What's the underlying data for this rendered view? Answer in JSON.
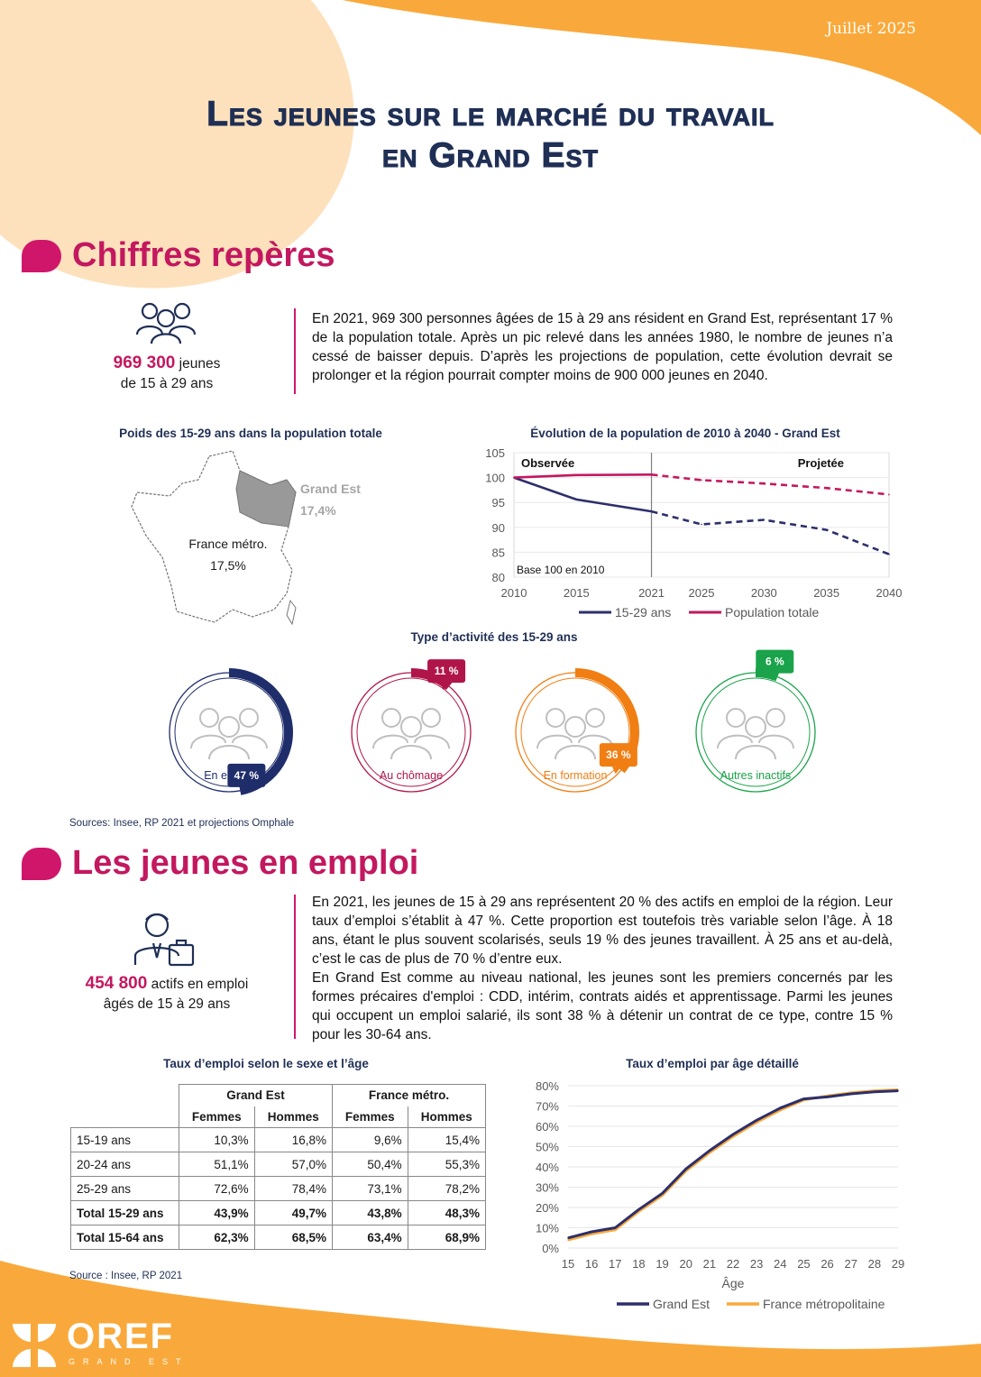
{
  "header": {
    "date": "Juillet 2025",
    "title_line1": "Les jeunes sur le marché du travail",
    "title_line2": "en Grand Est"
  },
  "colors": {
    "orange": "#f9a93b",
    "peach": "#fde1bc",
    "magenta": "#c3185f",
    "navy": "#1f2f55",
    "emploi": "#1f2d6b",
    "chomage": "#b01549",
    "formation": "#f07e13",
    "inactifs": "#1aa34a"
  },
  "section1": {
    "title": "Chiffres repères",
    "stat_value": "969 300",
    "stat_unit": "jeunes",
    "stat_line2": "de 15 à 29 ans",
    "text": "En 2021, 969 300 personnes âgées de 15 à 29 ans résident en Grand Est, représentant 17 % de la population totale. Après un pic relevé dans les années 1980, le nombre de jeunes n’a cessé de baisser depuis. D’après les projections de population, cette évolution devrait se prolonger et la région pourrait compter moins de 900 000 jeunes en 2040.",
    "map": {
      "title": "Poids des 15-29 ans dans la population totale",
      "region_label": "Grand Est",
      "region_value": "17,4%",
      "france_label": "France métro.",
      "france_value": "17,5%"
    },
    "sources": "Sources: Insee, RP 2021 et projections Omphale"
  },
  "activity": {
    "title": "Type d’activité des 15-29 ans",
    "items": [
      {
        "label": "En emploi",
        "badge": "47 %",
        "pct": 47,
        "color": "#1f2d6b",
        "icon": "group-icon"
      },
      {
        "label": "Au chômage",
        "badge": "11 %",
        "pct": 11,
        "color": "#b01549",
        "icon": "group-document-icon"
      },
      {
        "label": "En formation",
        "badge": "36 %",
        "pct": 36,
        "color": "#f07e13",
        "icon": "students-icon"
      },
      {
        "label": "Autres inactifs",
        "badge": "6 %",
        "pct": 6,
        "color": "#1aa34a",
        "icon": "pair-icon"
      }
    ]
  },
  "section2": {
    "title": "Les jeunes en emploi",
    "stat_value": "454 800",
    "stat_unit": "actifs en emploi",
    "stat_line2": "âgés de 15 à 29 ans",
    "para1": "En 2021, les jeunes de 15 à 29 ans représentent 20 % des actifs en emploi de la région. Leur taux d’emploi s’établit à 47 %. Cette proportion est toutefois très variable selon l’âge. À 18 ans, étant le plus souvent scolarisés, seuls 19 % des jeunes travaillent. À 25 ans et au-delà, c’est le cas de plus de 70 % d’entre eux.",
    "para2": "En Grand Est comme au niveau national, les jeunes sont les premiers concernés par les formes précaires d'emploi : CDD, intérim, contrats aidés et apprentissage. Parmi les jeunes qui occupent un emploi salarié, ils sont 38 % à détenir un contrat de ce type, contre 15 % pour les 30-64 ans.",
    "table": {
      "title": "Taux d’emploi selon le sexe et l’âge",
      "groups": [
        "Grand Est",
        "France métro."
      ],
      "subheaders": [
        "Femmes",
        "Hommes",
        "Femmes",
        "Hommes"
      ],
      "rows": [
        {
          "label": "15-19 ans",
          "values": [
            "10,3%",
            "16,8%",
            "9,6%",
            "15,4%"
          ]
        },
        {
          "label": "20-24 ans",
          "values": [
            "51,1%",
            "57,0%",
            "50,4%",
            "55,3%"
          ]
        },
        {
          "label": "25-29 ans",
          "values": [
            "72,6%",
            "78,4%",
            "73,1%",
            "78,2%"
          ]
        },
        {
          "label": "Total 15-29 ans",
          "values": [
            "43,9%",
            "49,7%",
            "43,8%",
            "48,3%"
          ],
          "bold": true
        },
        {
          "label": "Total 15-64 ans",
          "values": [
            "62,3%",
            "68,5%",
            "63,4%",
            "68,9%"
          ],
          "bold": true
        }
      ]
    },
    "source": "Source : Insee, RP 2021"
  },
  "footer": {
    "logo": "OREF",
    "logo_sub": "GRAND EST"
  },
  "chart_data": [
    {
      "type": "line",
      "title": "Évolution de la population de 2010 à 2040 - Grand Est",
      "x": [
        2010,
        2015,
        2021,
        2025,
        2030,
        2035,
        2040
      ],
      "xticks": [
        "2010",
        "2015",
        "2021",
        "2025",
        "2030",
        "2035",
        "2040"
      ],
      "ylim": [
        80,
        105
      ],
      "yticks": [
        "80",
        "85",
        "90",
        "95",
        "100",
        "105"
      ],
      "observed_until": 2021,
      "annotations": {
        "observed": "Observée",
        "projected": "Projetée",
        "base": "Base 100 en 2010"
      },
      "series": [
        {
          "name": "15-29 ans",
          "color": "#2d2f6b",
          "values": [
            100,
            95.6,
            93.2,
            90.6,
            91.5,
            89.5,
            84.6
          ]
        },
        {
          "name": "Population totale",
          "color": "#c3185f",
          "values": [
            100,
            100.5,
            100.6,
            99.5,
            98.8,
            97.9,
            96.6
          ]
        }
      ]
    },
    {
      "type": "line",
      "title": "Taux d’emploi par âge détaillé",
      "xlabel": "Âge",
      "x": [
        15,
        16,
        17,
        18,
        19,
        20,
        21,
        22,
        23,
        24,
        25,
        26,
        27,
        28,
        29
      ],
      "ylim": [
        0,
        80
      ],
      "yticks": [
        "0%",
        "10%",
        "20%",
        "30%",
        "40%",
        "50%",
        "60%",
        "70%",
        "80%"
      ],
      "series": [
        {
          "name": "Grand Est",
          "color": "#2d2f6b",
          "values": [
            5,
            8,
            10,
            19,
            27,
            39,
            48,
            56,
            63,
            69,
            73.5,
            74.5,
            76,
            77,
            77.5
          ]
        },
        {
          "name": "France métropolitaine",
          "color": "#f9a93b",
          "values": [
            4,
            7,
            9,
            18,
            26,
            38,
            47,
            55,
            62,
            68,
            73,
            75,
            76.5,
            77.5,
            78
          ]
        }
      ]
    }
  ]
}
